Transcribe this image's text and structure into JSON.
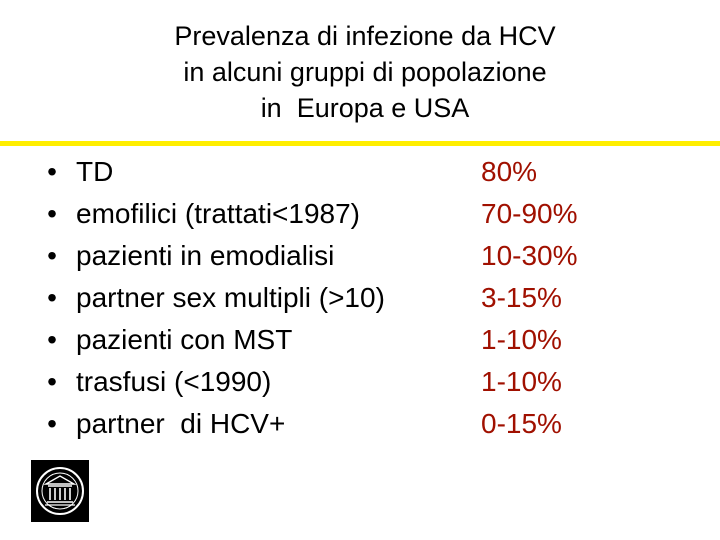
{
  "title_lines": [
    "Prevalenza di infezione da HCV",
    "in alcuni gruppi di popolazione",
    "in  Europa e USA"
  ],
  "colors": {
    "background": "#ffffff",
    "rule": "#ffee00",
    "values": "#a01000",
    "text": "#000000"
  },
  "bullet": "•",
  "rows": [
    {
      "label": "TD",
      "value": "80%"
    },
    {
      "label": "emofilici (trattati<1987)",
      "value": "70-90%"
    },
    {
      "label": "pazienti in emodialisi",
      "value": "10-30%"
    },
    {
      "label": "partner sex multipli (>10)",
      "value": "3-15%"
    },
    {
      "label": "pazienti con MST",
      "value": "1-10%"
    },
    {
      "label": "trasfusi (<1990)",
      "value": "1-10%"
    },
    {
      "label": "partner  di HCV+",
      "value": "0-15%"
    }
  ],
  "logo": {
    "icon": "university-seal-icon"
  }
}
